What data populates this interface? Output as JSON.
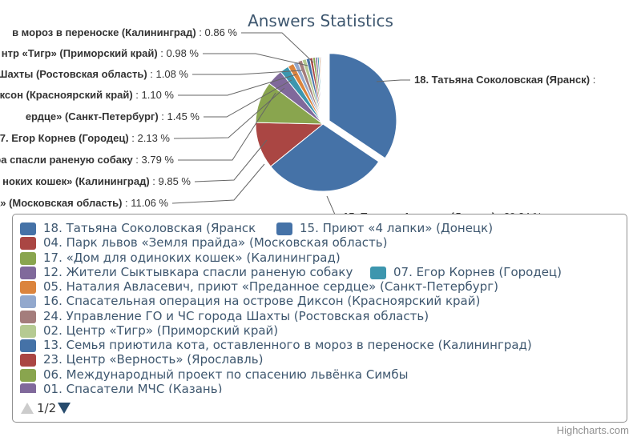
{
  "chart_data": {
    "type": "pie",
    "title": "Answers Statistics",
    "series": [
      {
        "name": "18. Татьяна Соколовская (Яранск)",
        "value": 34.0,
        "color": "#4572a7",
        "sliced": true
      },
      {
        "name": "15. Приют «4 лапки» (Донецк)",
        "value": 29.34,
        "color": "#4572a7"
      },
      {
        "name": "04. Парк львов «Земля прайда» (Московская область)",
        "value": 11.06,
        "color": "#aa4643"
      },
      {
        "name": "17. «Дом для одиноких кошек» (Калининград)",
        "value": 9.85,
        "color": "#89a54e"
      },
      {
        "name": "12. Жители Сыктывкара спасли раненую собаку",
        "value": 3.79,
        "color": "#80699b"
      },
      {
        "name": "07. Егор Корнев (Городец)",
        "value": 2.13,
        "color": "#3d96ae"
      },
      {
        "name": "05. Наталия Авласевич, приют «Преданное сердце» (Санкт-Петербург)",
        "value": 1.45,
        "color": "#db843d"
      },
      {
        "name": "16. Спасательная операция на острове Диксон (Красноярский край)",
        "value": 1.1,
        "color": "#92a8cd"
      },
      {
        "name": "24. Управление ГО и ЧС города Шахты (Ростовская область)",
        "value": 1.08,
        "color": "#a47d7c"
      },
      {
        "name": "02. Центр «Тигр» (Приморский край)",
        "value": 0.98,
        "color": "#b5ca92"
      },
      {
        "name": "13. Семья приютила кота, оставленного в мороз в переноске (Калининград)",
        "value": 0.86,
        "color": "#4572a7"
      },
      {
        "name": "23. Центр «Верность» (Ярославль)",
        "value": 0.7,
        "color": "#aa4643"
      },
      {
        "name": "06. Международный проект по спасению львёнка Симбы",
        "value": 0.6,
        "color": "#89a54e"
      },
      {
        "name": "01. Спасатели МЧС (Казань)",
        "value": 0.5,
        "color": "#80699b"
      },
      {
        "name": "",
        "value": 0.4,
        "color": "#3d96ae"
      },
      {
        "name": "",
        "value": 0.3,
        "color": "#db843d"
      },
      {
        "name": "",
        "value": 0.25,
        "color": "#92a8cd"
      },
      {
        "name": "",
        "value": 0.2,
        "color": "#a47d7c"
      },
      {
        "name": "",
        "value": 0.15,
        "color": "#b5ca92"
      }
    ],
    "data_labels": [
      {
        "name": "18. Татьяна Соколовская (Яранск)",
        "suffix": " :"
      },
      {
        "name": "15. Приют «4 лапки» (Донецк)",
        "suffix": " : 29.34 %"
      },
      {
        "name": "да» (Московская область)",
        "suffix": " : 11.06 %"
      },
      {
        "name": "ноких кошек» (Калининград)",
        "suffix": " : 9.85 %"
      },
      {
        "name": "ра спасли раненую собаку",
        "suffix": "  : 3.79 %"
      },
      {
        "name": "07. Егор Корнев (Городец)",
        "suffix": " : 2.13 %"
      },
      {
        "name": "ердце» (Санкт-Петербург)",
        "suffix": " : 1.45 %"
      },
      {
        "name": "иксон (Красноярский край)",
        "suffix": " : 1.10 %"
      },
      {
        "name": "Шахты (Ростовская область)",
        "suffix": " : 1.08 %"
      },
      {
        "name": "нтр «Тигр» (Приморский край)",
        "suffix": " : 0.98 %"
      },
      {
        "name": "в мороз в переноске (Калининград)",
        "suffix": " : 0.86 %"
      }
    ],
    "legend": {
      "placement": "bottom",
      "items": [
        {
          "label": "18. Татьяна Соколовская (Яранск",
          "color": "#4572a7"
        },
        {
          "label": "15. Приют «4 лапки» (Донецк)",
          "color": "#4572a7"
        },
        {
          "label": "04. Парк львов «Земля прайда» (Московская область)",
          "color": "#aa4643"
        },
        {
          "label": "17. «Дом для одиноких кошек» (Калининград)",
          "color": "#89a54e"
        },
        {
          "label": "12. Жители Сыктывкара спасли раненую собаку",
          "color": "#80699b"
        },
        {
          "label": "07. Егор Корнев (Городец)",
          "color": "#3d96ae"
        },
        {
          "label": "05. Наталия Авласевич, приют «Преданное сердце» (Санкт-Петербург)",
          "color": "#db843d"
        },
        {
          "label": "16. Спасательная операция на острове Диксон (Красноярский край)",
          "color": "#92a8cd"
        },
        {
          "label": "24. Управление ГО и ЧС города Шахты (Ростовская область)",
          "color": "#a47d7c"
        },
        {
          "label": "02. Центр «Тигр» (Приморский край)",
          "color": "#b5ca92"
        },
        {
          "label": "13. Семья приютила кота, оставленного в мороз в переноске (Калининград)",
          "color": "#4572a7"
        },
        {
          "label": "23. Центр «Верность» (Ярославль)",
          "color": "#aa4643"
        },
        {
          "label": "06. Международный проект по спасению львёнка Симбы",
          "color": "#89a54e"
        },
        {
          "label": "01. Спасатели МЧС (Казань)",
          "color": "#80699b"
        }
      ]
    },
    "pager": {
      "text": "1/2",
      "current_page": 1,
      "total_pages": 2
    }
  },
  "credits": "Highcharts.com"
}
